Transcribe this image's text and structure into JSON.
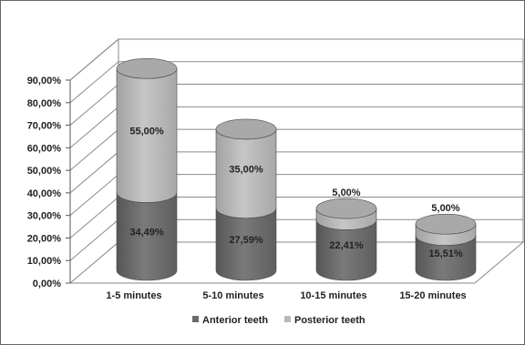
{
  "chart_data": {
    "type": "bar",
    "style": "stacked-3d-cylinder",
    "categories": [
      "1-5 minutes",
      "5-10 minutes",
      "10-15 minutes",
      "15-20 minutes"
    ],
    "series": [
      {
        "name": "Anterior teeth",
        "values": [
          34.49,
          27.59,
          22.41,
          15.51
        ],
        "labels": [
          "34,49%",
          "27,59%",
          "22,41%",
          "15,51%"
        ],
        "color": "#6b6b6b"
      },
      {
        "name": "Posterior teeth",
        "values": [
          55.0,
          35.0,
          5.0,
          5.0
        ],
        "labels": [
          "55,00%",
          "35,00%",
          "5,00%",
          "5,00%"
        ],
        "color": "#b9b9b9"
      }
    ],
    "y_ticks": [
      "0,00%",
      "10,00%",
      "20,00%",
      "30,00%",
      "40,00%",
      "50,00%",
      "60,00%",
      "70,00%",
      "80,00%",
      "90,00%"
    ],
    "ylim": [
      0,
      90
    ],
    "title": "",
    "xlabel": "",
    "ylabel": "",
    "grid": true,
    "legend_position": "bottom"
  }
}
